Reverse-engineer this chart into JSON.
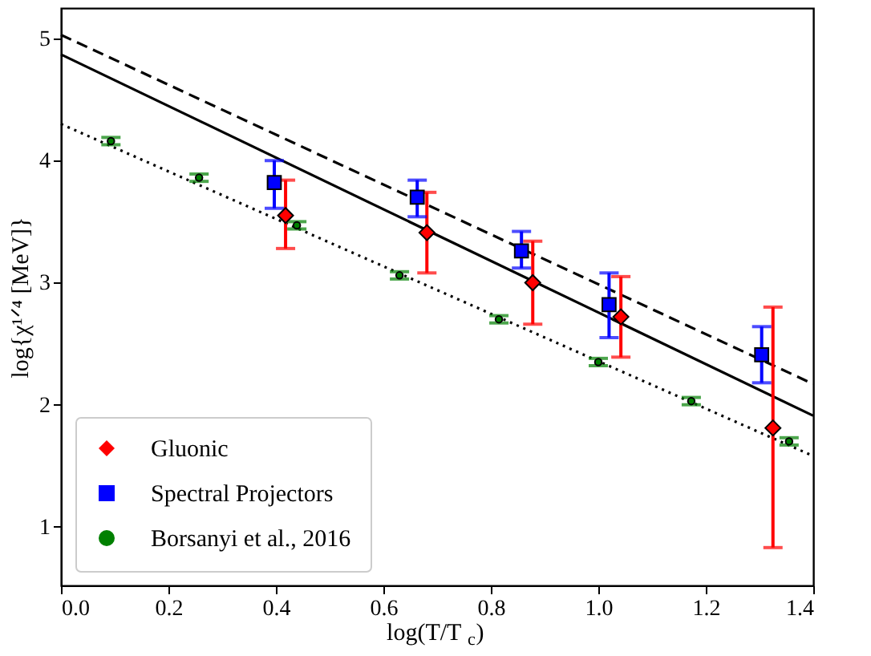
{
  "chart_data": {
    "type": "scatter",
    "xlabel": "log(T/T$_{c}$)",
    "ylabel": "log{χ¹ᐟ⁴ [MeV]}",
    "xlim": [
      0,
      1.4
    ],
    "ylim": [
      0.52,
      5.25
    ],
    "xticks": [
      {
        "value": 0,
        "label": "0.0"
      },
      0.2,
      0.4,
      0.6,
      0.8,
      {
        "value": 1,
        "label": "1.0"
      },
      1.2,
      1.4
    ],
    "yticks": [
      1,
      2,
      3,
      4,
      5
    ],
    "grid": false,
    "legend": "bottom left",
    "series": [
      {
        "name": "Gluonic",
        "marker": "diamond",
        "color": "#ff0000",
        "x": [
          0.418,
          0.681,
          0.878,
          1.042,
          1.325
        ],
        "values": [
          3.55,
          3.41,
          3.0,
          2.72,
          1.81
        ],
        "errors": [
          [
            3.28,
            3.84
          ],
          [
            3.08,
            3.74
          ],
          [
            2.66,
            3.34
          ],
          [
            2.39,
            3.05
          ],
          [
            0.83,
            2.8
          ]
        ]
      },
      {
        "name": "Spectral Projectors",
        "marker": "square",
        "color": "#0000ff",
        "x": [
          0.397,
          0.663,
          0.857,
          1.02,
          1.304
        ],
        "values": [
          3.82,
          3.7,
          3.26,
          2.82,
          2.41
        ],
        "errors": [
          [
            3.61,
            4.0
          ],
          [
            3.54,
            3.84
          ],
          [
            3.12,
            3.42
          ],
          [
            2.55,
            3.08
          ],
          [
            2.18,
            2.64
          ]
        ]
      },
      {
        "name": "Borsanyi et al., 2016",
        "marker": "circle",
        "color": "#008000",
        "x": [
          0.093,
          0.257,
          0.439,
          0.63,
          0.815,
          1.0,
          1.173,
          1.355
        ],
        "values": [
          4.16,
          3.86,
          3.47,
          3.06,
          2.7,
          2.35,
          2.03,
          1.7
        ],
        "errors": [
          0.03,
          0.03,
          0.03,
          0.03,
          0.03,
          0.03,
          0.03,
          0.03
        ]
      },
      {
        "type": "line",
        "line_style": "dashed",
        "color": "#000000",
        "x": [
          0,
          1.4
        ],
        "values": [
          5.03,
          2.17
        ]
      },
      {
        "type": "line",
        "line_style": "solid",
        "color": "#000000",
        "x": [
          0,
          1.4
        ],
        "values": [
          4.87,
          1.91
        ]
      },
      {
        "type": "line",
        "line_style": "dotted",
        "color": "#000000",
        "x": [
          0,
          1.4
        ],
        "values": [
          4.3,
          1.58
        ]
      }
    ]
  }
}
